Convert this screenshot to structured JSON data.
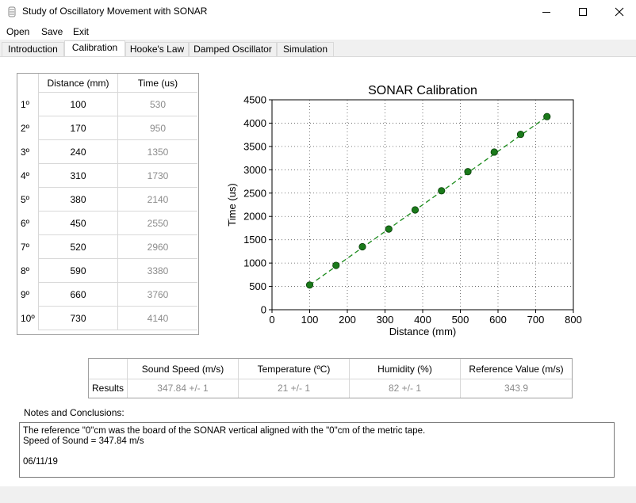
{
  "window": {
    "title": "Study of Oscillatory Movement with SONAR"
  },
  "menu": {
    "items": [
      "Open",
      "Save",
      "Exit"
    ]
  },
  "tabs": [
    "Introduction",
    "Calibration",
    "Hooke's Law",
    "Damped Oscillator",
    "Simulation"
  ],
  "active_tab": "Calibration",
  "calibration_table": {
    "headers": [
      "Distance (mm)",
      "Time (us)"
    ],
    "rows": [
      {
        "label": "1º",
        "distance": "100",
        "time": "530"
      },
      {
        "label": "2º",
        "distance": "170",
        "time": "950"
      },
      {
        "label": "3º",
        "distance": "240",
        "time": "1350"
      },
      {
        "label": "4º",
        "distance": "310",
        "time": "1730"
      },
      {
        "label": "5º",
        "distance": "380",
        "time": "2140"
      },
      {
        "label": "6º",
        "distance": "450",
        "time": "2550"
      },
      {
        "label": "7º",
        "distance": "520",
        "time": "2960"
      },
      {
        "label": "8º",
        "distance": "590",
        "time": "3380"
      },
      {
        "label": "9º",
        "distance": "660",
        "time": "3760"
      },
      {
        "label": "10º",
        "distance": "730",
        "time": "4140"
      }
    ]
  },
  "chart_data": {
    "type": "scatter",
    "title": "SONAR Calibration",
    "xlabel": "Distance (mm)",
    "ylabel": "Time (us)",
    "xlim": [
      0,
      800
    ],
    "ylim": [
      0,
      4500
    ],
    "xticks": [
      0,
      100,
      200,
      300,
      400,
      500,
      600,
      700,
      800
    ],
    "yticks": [
      0,
      500,
      1000,
      1500,
      2000,
      2500,
      3000,
      3500,
      4000,
      4500
    ],
    "grid": true,
    "x": [
      100,
      170,
      240,
      310,
      380,
      450,
      520,
      590,
      660,
      730
    ],
    "y": [
      530,
      950,
      1350,
      1730,
      2140,
      2550,
      2960,
      3380,
      3760,
      4140
    ],
    "fit_line": {
      "x": [
        100,
        730
      ],
      "y": [
        530,
        4140
      ],
      "style": "dashed"
    },
    "colors": {
      "points": "#1a7a1a",
      "line": "#1a8a1a"
    }
  },
  "results_table": {
    "headers": [
      "Sound Speed (m/s)",
      "Temperature (ºC)",
      "Humidity (%)",
      "Reference Value (m/s)"
    ],
    "row_label": "Results",
    "values": [
      "347.84 +/- 1",
      "21 +/- 1",
      "82 +/- 1",
      "343.9"
    ]
  },
  "notes": {
    "label": "Notes and Conclusions:",
    "lines": [
      "The reference \"0\"cm was the board of the SONAR vertical aligned with the \"0\"cm of the metric tape.",
      "Speed of Sound = 347.84 m/s",
      "",
      "06/11/19"
    ]
  }
}
